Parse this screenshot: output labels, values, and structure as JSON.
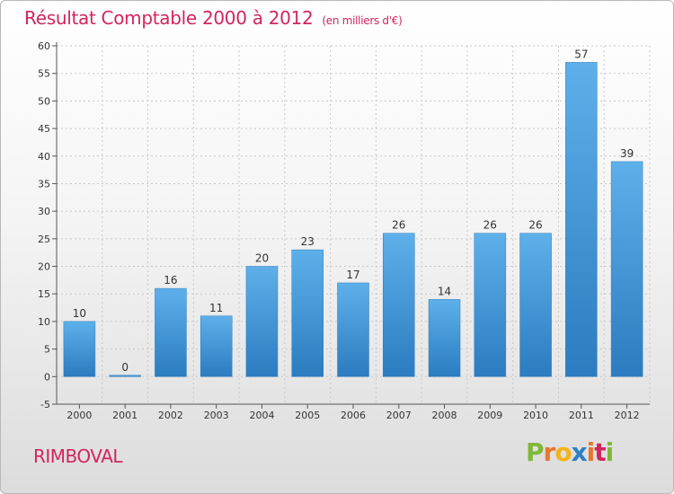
{
  "chart_data": {
    "type": "bar",
    "title": "Résultat Comptable 2000 à 2012",
    "subtitle": "(en milliers d'€)",
    "categories": [
      "2000",
      "2001",
      "2002",
      "2003",
      "2004",
      "2005",
      "2006",
      "2007",
      "2008",
      "2009",
      "2010",
      "2011",
      "2012"
    ],
    "values": [
      10,
      0,
      16,
      11,
      20,
      23,
      17,
      26,
      14,
      26,
      26,
      57,
      39
    ],
    "ylim": [
      -5,
      60
    ],
    "yticks": [
      -5,
      0,
      5,
      10,
      15,
      20,
      25,
      30,
      35,
      40,
      45,
      50,
      55,
      60
    ],
    "xlabel": "",
    "ylabel": "",
    "grid": true,
    "bar_color": "#4a9fdf",
    "bar_color_dark": "#2b7cc0"
  },
  "footer": {
    "place": "RIMBOVAL",
    "logo": [
      "P",
      "r",
      "o",
      "x",
      "i",
      "t",
      "i"
    ],
    "logo_colors": [
      "#7fb83a",
      "#e8772b",
      "#f2b417",
      "#2f7fc4",
      "#e8772b",
      "#d2255d",
      "#7fb83a"
    ]
  },
  "title_color": "#d2255d"
}
